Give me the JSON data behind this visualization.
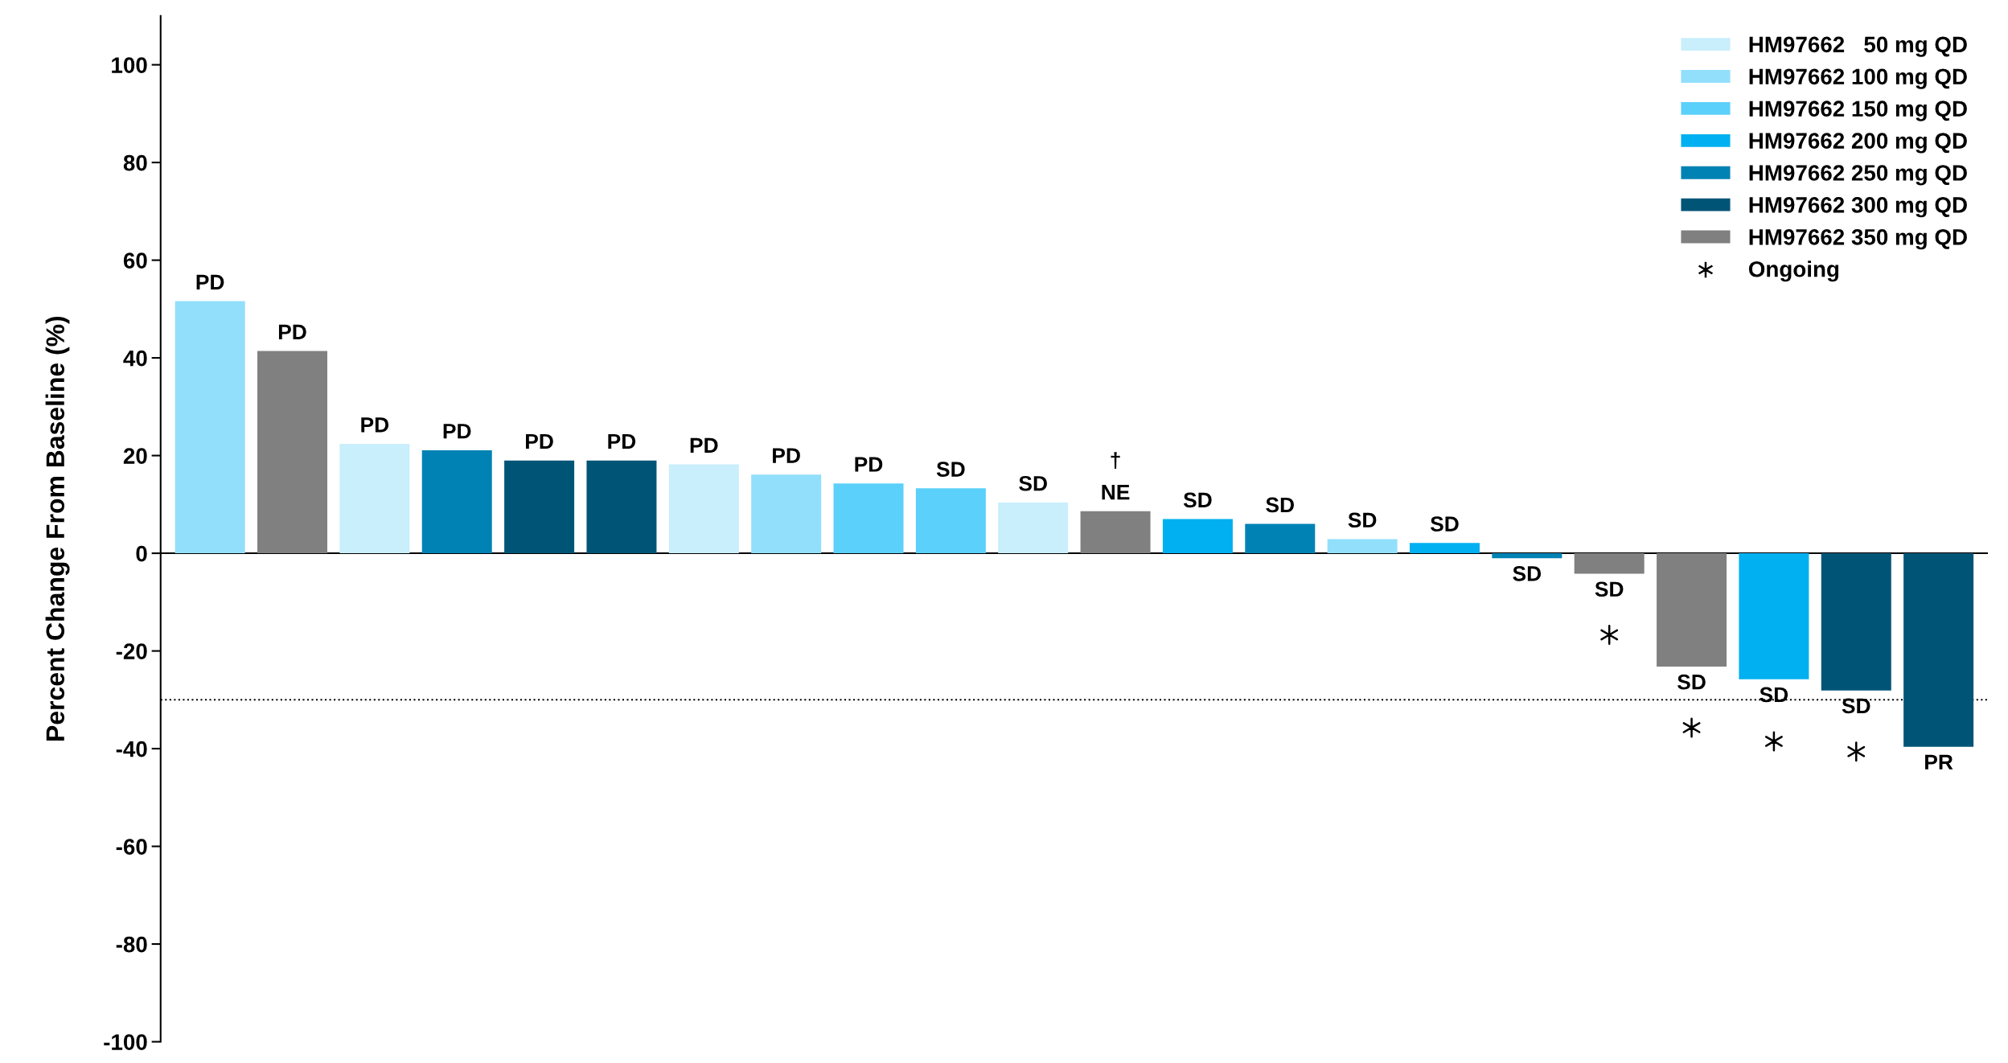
{
  "chart_data": {
    "type": "bar",
    "ylabel": "Percent Change From Baseline (%)",
    "categories": [
      null,
      null,
      null,
      null,
      null,
      null,
      null,
      null,
      null,
      null,
      null,
      null,
      null,
      null,
      null,
      null,
      null,
      null,
      null,
      null,
      null,
      null
    ],
    "series": [
      {
        "name": "HM97662   50 mg QD",
        "color": "#c9eefc",
        "values": [
          null,
          null,
          22.4,
          null,
          null,
          null,
          18.2,
          null,
          null,
          null,
          10.4,
          null,
          null,
          null,
          null,
          null,
          null,
          null,
          null,
          null,
          null,
          null
        ]
      },
      {
        "name": "HM97662 100 mg QD",
        "color": "#92dffb",
        "values": [
          51.6,
          null,
          null,
          null,
          null,
          null,
          null,
          16.1,
          null,
          null,
          null,
          null,
          null,
          null,
          2.9,
          null,
          null,
          null,
          null,
          null,
          null,
          null
        ]
      },
      {
        "name": "HM97662 150 mg QD",
        "color": "#5bd0fa",
        "values": [
          null,
          null,
          null,
          null,
          null,
          null,
          null,
          null,
          14.3,
          13.3,
          null,
          null,
          null,
          null,
          null,
          null,
          null,
          null,
          null,
          null,
          null,
          null
        ]
      },
      {
        "name": "HM97662 200 mg QD",
        "color": "#00b0f0",
        "values": [
          null,
          null,
          null,
          null,
          null,
          null,
          null,
          null,
          null,
          null,
          null,
          null,
          7.0,
          null,
          null,
          2.1,
          null,
          null,
          null,
          -25.8,
          null,
          null
        ]
      },
      {
        "name": "HM97662 250 mg QD",
        "color": "#0082b4",
        "values": [
          null,
          null,
          null,
          21.1,
          null,
          null,
          null,
          null,
          null,
          null,
          null,
          null,
          null,
          6.0,
          null,
          null,
          -1.0,
          null,
          null,
          null,
          null,
          null
        ]
      },
      {
        "name": "HM97662 300 mg QD",
        "color": "#005577",
        "values": [
          null,
          null,
          null,
          null,
          19.0,
          19.0,
          null,
          null,
          null,
          null,
          null,
          null,
          null,
          null,
          null,
          null,
          null,
          null,
          null,
          null,
          -28.1,
          -39.6
        ]
      },
      {
        "name": "HM97662 350 mg QD",
        "color": "#808080",
        "values": [
          null,
          41.4,
          null,
          null,
          null,
          null,
          null,
          null,
          null,
          null,
          null,
          8.6,
          null,
          null,
          null,
          null,
          null,
          -4.2,
          -23.2,
          null,
          null,
          null
        ]
      },
      {
        "name": "Ongoing",
        "type": "scatter",
        "marker": "cross",
        "color": "#000000",
        "values": [
          null,
          null,
          null,
          null,
          null,
          null,
          null,
          null,
          null,
          null,
          null,
          null,
          null,
          null,
          null,
          null,
          null,
          -16.7,
          -35.7,
          -38.5,
          -40.6,
          null
        ]
      }
    ],
    "value_labels": [
      "PD",
      "PD",
      "PD",
      "PD",
      "PD",
      "PD",
      "PD",
      "PD",
      "PD",
      "SD",
      "SD",
      "†\nNE",
      "SD",
      "SD",
      "SD",
      "SD",
      "SD",
      "SD",
      "SD",
      "SD",
      "SD",
      "PR"
    ],
    "ylim": [
      -100,
      110
    ],
    "yticks": [
      -100,
      -80,
      -60,
      -40,
      -20,
      0,
      20,
      40,
      60,
      80,
      100
    ],
    "ref_lines": [
      {
        "axis": "y",
        "value": 0,
        "color": "#000000",
        "line_style": "solid"
      },
      {
        "axis": "y",
        "value": -30,
        "color": "#000000",
        "line_style": "dotted"
      }
    ],
    "grid": false,
    "legend": "top right"
  }
}
